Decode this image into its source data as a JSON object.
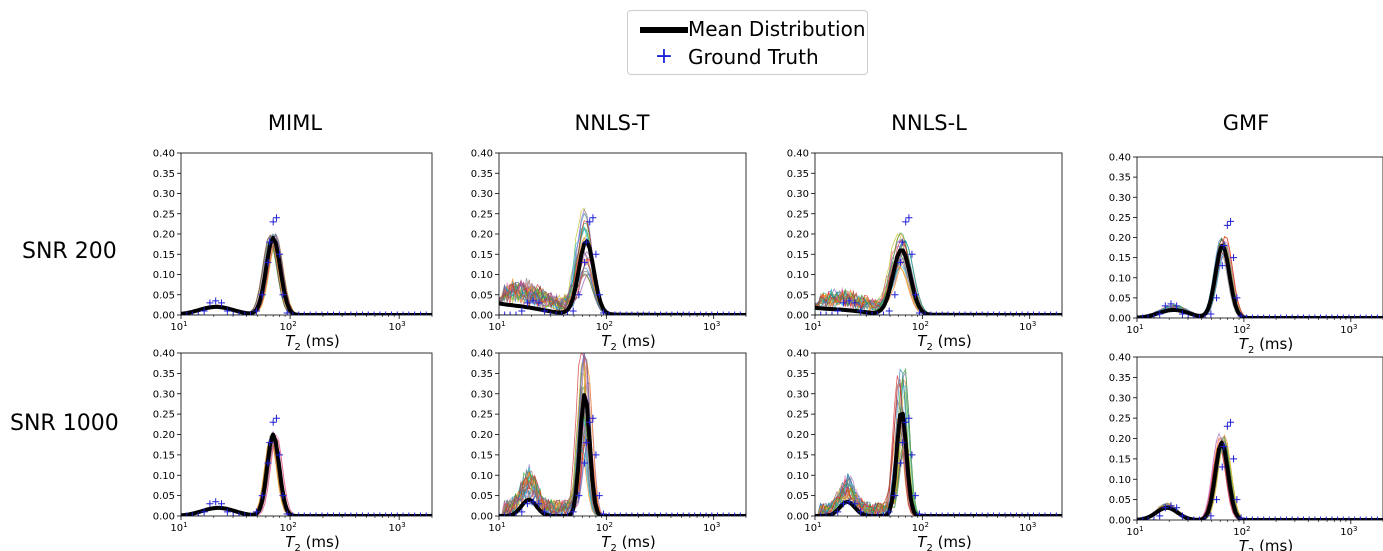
{
  "legend": {
    "items": [
      {
        "label": "Mean Distribution",
        "marker": "thick-black-line",
        "color": "#000000"
      },
      {
        "label": "Ground Truth",
        "marker": "plus",
        "color": "#1f1fd6"
      }
    ]
  },
  "columns": [
    "MIML",
    "NNLS-T",
    "NNLS-L",
    "GMF"
  ],
  "rows": [
    "SNR 200",
    "SNR 1000"
  ],
  "chart_data": {
    "type": "line",
    "x_scale": "log",
    "xlim": [
      10,
      2000
    ],
    "ylim": [
      0,
      0.4
    ],
    "yticks": [
      "0.00",
      "0.05",
      "0.10",
      "0.15",
      "0.20",
      "0.25",
      "0.30",
      "0.35",
      "0.40"
    ],
    "xtick_bases": [
      "10",
      "10",
      "10"
    ],
    "xtick_exps": [
      "1",
      "2",
      "3"
    ],
    "xlabel_main": "T",
    "xlabel_sub": "2",
    "xlabel_unit": " (ms)",
    "ensemble_colors": [
      "#1f77b4",
      "#ff7f0e",
      "#2ca02c",
      "#d62728",
      "#9467bd",
      "#8c564b",
      "#e377c2",
      "#7f7f7f",
      "#bcbd22",
      "#17becf"
    ],
    "ground_truth": {
      "x": [
        10,
        11.3,
        12.7,
        14.4,
        16.3,
        18.4,
        20.8,
        23.5,
        26.6,
        30.1,
        34,
        38.4,
        43.4,
        49.1,
        55.5,
        62.7,
        65,
        70,
        75,
        80,
        86,
        94,
        106,
        120,
        135,
        153,
        173,
        196,
        221,
        250,
        283,
        320,
        361,
        408,
        461,
        521,
        589,
        665,
        752,
        850,
        961,
        1086,
        1227,
        1387,
        1567,
        1771,
        2000
      ],
      "y": [
        0,
        0,
        0,
        0,
        0.01,
        0.03,
        0.035,
        0.03,
        0.01,
        0,
        0,
        0,
        0,
        0.01,
        0.05,
        0.13,
        0.18,
        0.23,
        0.24,
        0.15,
        0.05,
        0.005,
        0,
        0,
        0,
        0,
        0,
        0,
        0,
        0,
        0,
        0,
        0,
        0,
        0,
        0,
        0,
        0,
        0,
        0,
        0,
        0,
        0,
        0,
        0,
        0,
        0
      ]
    },
    "panels": [
      {
        "column": "MIML",
        "row": "SNR 200",
        "mean": {
          "p1": {
            "center": 21,
            "height": 0.02,
            "width": 0.16
          },
          "p2": {
            "center": 70,
            "height": 0.19,
            "width": 0.065
          },
          "base": 0
        },
        "spread": 0.15,
        "n_samples": 18
      },
      {
        "column": "NNLS-T",
        "row": "SNR 200",
        "mean": {
          "p1": {
            "center": 17,
            "height": 0.008,
            "width": 0.18
          },
          "p2": {
            "center": 65,
            "height": 0.18,
            "width": 0.07
          },
          "base": 0.025
        },
        "spread": 1.2,
        "n_samples": 26
      },
      {
        "column": "NNLS-L",
        "row": "SNR 200",
        "mean": {
          "p1": {
            "center": 18,
            "height": 0.006,
            "width": 0.2
          },
          "p2": {
            "center": 64,
            "height": 0.16,
            "width": 0.08
          },
          "base": 0.015
        },
        "spread": 0.9,
        "n_samples": 24
      },
      {
        "column": "GMF",
        "row": "SNR 200",
        "mean": {
          "p1": {
            "center": 22,
            "height": 0.02,
            "width": 0.14
          },
          "p2": {
            "center": 63,
            "height": 0.18,
            "width": 0.065
          },
          "base": 0
        },
        "spread": 0.35,
        "n_samples": 20
      },
      {
        "column": "MIML",
        "row": "SNR 1000",
        "mean": {
          "p1": {
            "center": 22,
            "height": 0.02,
            "width": 0.15
          },
          "p2": {
            "center": 70,
            "height": 0.2,
            "width": 0.055
          },
          "base": 0
        },
        "spread": 0.12,
        "n_samples": 18
      },
      {
        "column": "NNLS-T",
        "row": "SNR 1000",
        "mean": {
          "p1": {
            "center": 19,
            "height": 0.04,
            "width": 0.07
          },
          "p2": {
            "center": 63,
            "height": 0.3,
            "width": 0.045
          },
          "base": 0
        },
        "spread": 1.3,
        "n_samples": 26
      },
      {
        "column": "NNLS-L",
        "row": "SNR 1000",
        "mean": {
          "p1": {
            "center": 20,
            "height": 0.035,
            "width": 0.07
          },
          "p2": {
            "center": 64,
            "height": 0.26,
            "width": 0.045
          },
          "base": 0
        },
        "spread": 1.1,
        "n_samples": 24
      },
      {
        "column": "GMF",
        "row": "SNR 1000",
        "mean": {
          "p1": {
            "center": 19,
            "height": 0.03,
            "width": 0.1
          },
          "p2": {
            "center": 62,
            "height": 0.19,
            "width": 0.06
          },
          "base": 0
        },
        "spread": 0.3,
        "n_samples": 20
      }
    ]
  }
}
